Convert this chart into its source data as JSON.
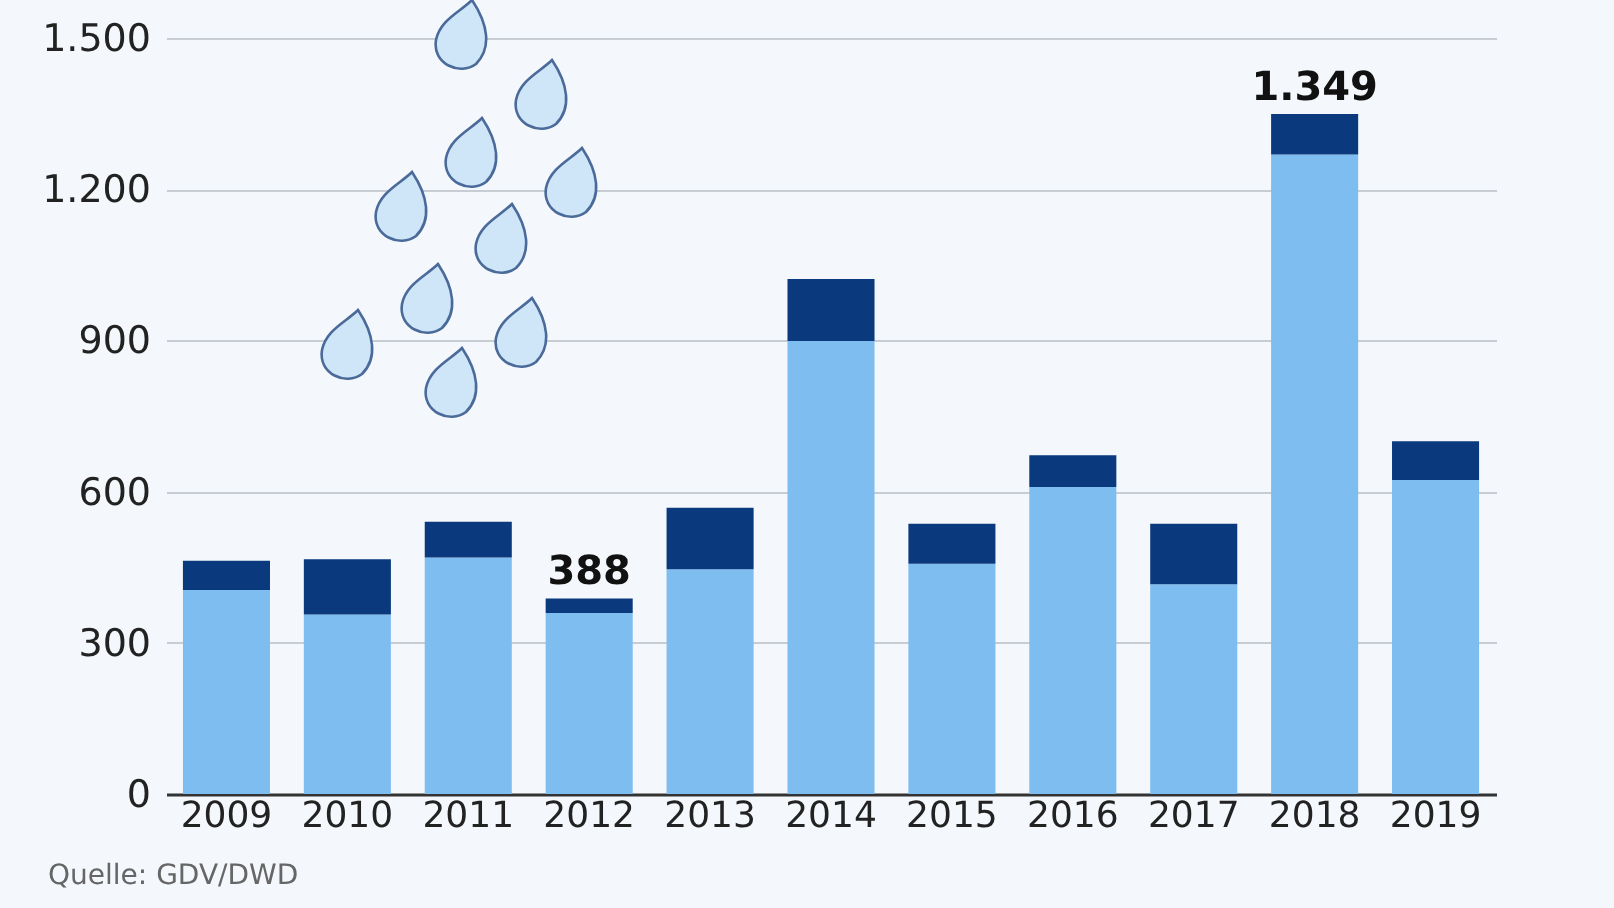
{
  "chart_data": {
    "type": "bar",
    "stacked": true,
    "categories": [
      "2009",
      "2010",
      "2011",
      "2012",
      "2013",
      "2014",
      "2015",
      "2016",
      "2017",
      "2018",
      "2019"
    ],
    "series": [
      {
        "color": "#7dbdf0",
        "values": [
          405,
          356,
          469,
          359,
          446,
          899,
          457,
          609,
          416,
          1269,
          623
        ]
      },
      {
        "color": "#0a3a7d",
        "values": [
          58,
          110,
          71,
          29,
          122,
          123,
          79,
          63,
          120,
          80,
          77
        ]
      }
    ],
    "totals": [
      null,
      null,
      null,
      "388",
      null,
      null,
      null,
      null,
      null,
      "1.349",
      null
    ],
    "ylim": [
      0,
      1500
    ],
    "yticks": [
      0,
      300,
      600,
      900,
      {
        "value": 1200,
        "label": "1.200"
      },
      {
        "value": 1500,
        "label": "1.500"
      }
    ],
    "grid": "y",
    "annotations": [
      "Quelle: GDV/DWD"
    ]
  }
}
